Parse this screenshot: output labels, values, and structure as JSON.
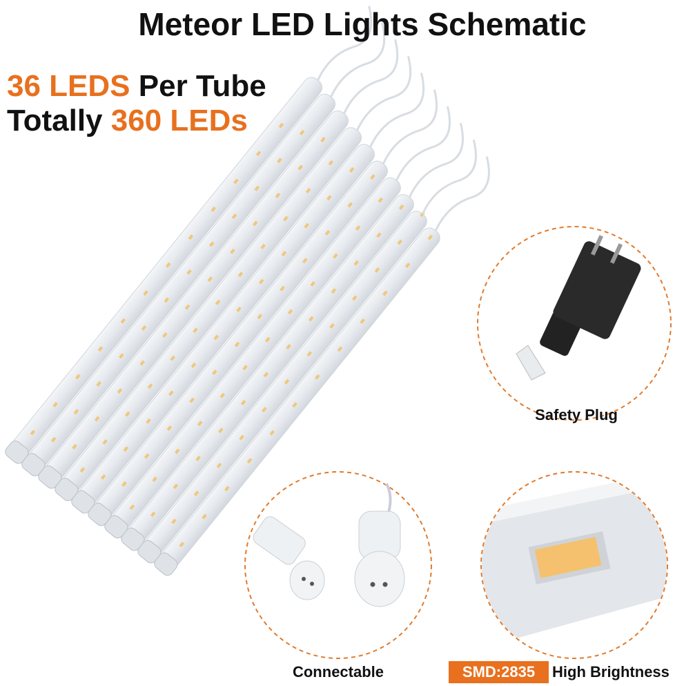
{
  "title": "Meteor LED Lights Schematic",
  "headlines": [
    {
      "accent": "36 LEDS",
      "text": "Per Tube"
    },
    {
      "text": "Totally",
      "accent": "360 LEDs"
    }
  ],
  "callouts": [
    {
      "label": "Safety Plug"
    },
    {
      "label": "Connectable"
    },
    {
      "badge": "SMD:2835",
      "label": "High Brightness"
    }
  ]
}
